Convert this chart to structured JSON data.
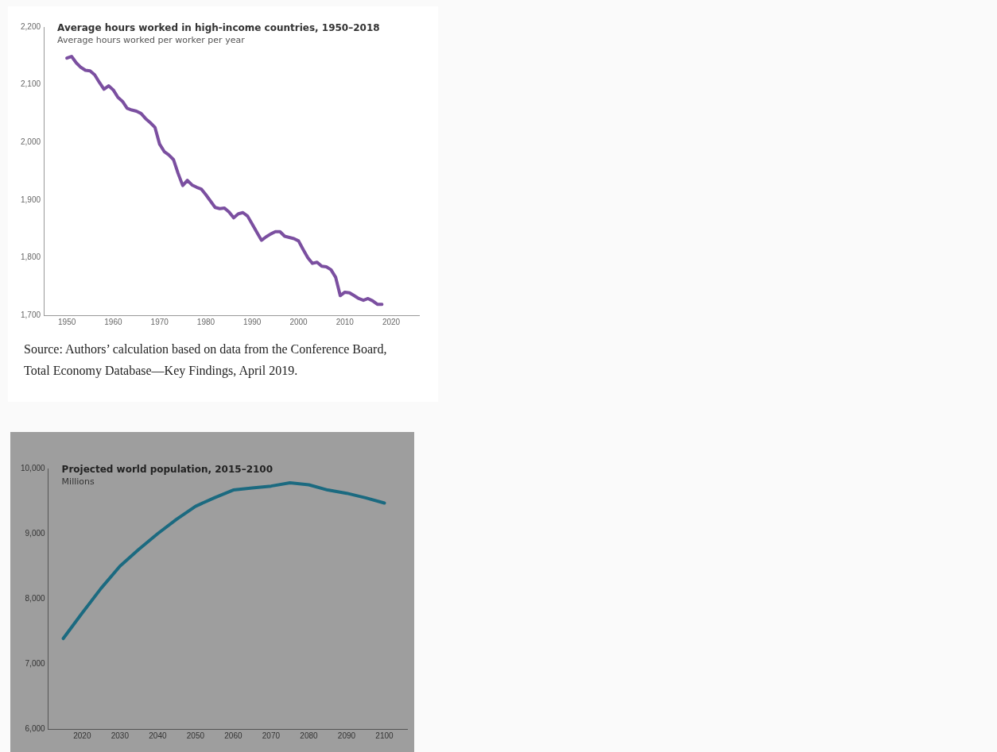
{
  "chart_data": [
    {
      "type": "line",
      "title": "Average hours worked in high-income countries, 1950–2018",
      "subtitle": "Average hours worked per worker per year",
      "marker": "none",
      "grid": false,
      "legend": false,
      "x": [
        1950,
        1951,
        1952,
        1953,
        1954,
        1955,
        1956,
        1957,
        1958,
        1959,
        1960,
        1961,
        1962,
        1963,
        1964,
        1965,
        1966,
        1967,
        1968,
        1969,
        1970,
        1971,
        1972,
        1973,
        1974,
        1975,
        1976,
        1977,
        1978,
        1979,
        1980,
        1981,
        1982,
        1983,
        1984,
        1985,
        1986,
        1987,
        1988,
        1989,
        1990,
        1991,
        1992,
        1993,
        1994,
        1995,
        1996,
        1997,
        1998,
        1999,
        2000,
        2001,
        2002,
        2003,
        2004,
        2005,
        2006,
        2007,
        2008,
        2009,
        2010,
        2011,
        2012,
        2013,
        2014,
        2015,
        2016,
        2017,
        2018
      ],
      "series": [
        {
          "color": "#7b4fa0",
          "values": [
            2146,
            2149,
            2138,
            2130,
            2125,
            2124,
            2117,
            2104,
            2092,
            2098,
            2091,
            2078,
            2071,
            2059,
            2056,
            2054,
            2050,
            2041,
            2034,
            2026,
            1997,
            1984,
            1978,
            1970,
            1946,
            1925,
            1934,
            1926,
            1922,
            1919,
            1909,
            1898,
            1887,
            1885,
            1886,
            1879,
            1869,
            1876,
            1878,
            1872,
            1858,
            1844,
            1830,
            1836,
            1841,
            1845,
            1845,
            1837,
            1835,
            1833,
            1829,
            1814,
            1800,
            1790,
            1792,
            1785,
            1784,
            1779,
            1766,
            1734,
            1740,
            1739,
            1734,
            1729,
            1726,
            1729,
            1725,
            1719,
            1719
          ]
        }
      ],
      "xlim": [
        1945,
        2026
      ],
      "xticks": [
        1950,
        1960,
        1970,
        1980,
        1990,
        2000,
        2010,
        2020
      ],
      "ylim": [
        1700,
        2200
      ],
      "yticks": [
        {
          "value": 1700,
          "label": "1,700"
        },
        {
          "value": 1800,
          "label": "1,800"
        },
        {
          "value": 1900,
          "label": "1,900"
        },
        {
          "value": 2000,
          "label": "2,000"
        },
        {
          "value": 2100,
          "label": "2,100"
        },
        {
          "value": 2200,
          "label": "2,200"
        }
      ],
      "annotations": [
        "Source: Authors’ calculation based on data from the Conference Board, Total Economy Database—Key Findings, April 2019."
      ]
    },
    {
      "type": "line",
      "title": "Projected world population, 2015–2100",
      "subtitle": "Millions",
      "marker": "none",
      "grid": false,
      "legend": false,
      "x": [
        2015,
        2020,
        2025,
        2030,
        2035,
        2040,
        2045,
        2050,
        2055,
        2060,
        2065,
        2070,
        2075,
        2080,
        2085,
        2090,
        2095,
        2100
      ],
      "series": [
        {
          "color": "#1b6a80",
          "values": [
            7390,
            7780,
            8160,
            8500,
            8760,
            9000,
            9220,
            9420,
            9550,
            9670,
            9700,
            9730,
            9780,
            9750,
            9670,
            9620,
            9550,
            9470
          ]
        }
      ],
      "xlim": [
        2011,
        2106
      ],
      "xticks": [
        2020,
        2030,
        2040,
        2050,
        2060,
        2070,
        2080,
        2090,
        2100
      ],
      "ylim": [
        6000,
        10000
      ],
      "yticks": [
        {
          "value": 6000,
          "label": "6,000"
        },
        {
          "value": 7000,
          "label": "7,000"
        },
        {
          "value": 8000,
          "label": "8,000"
        },
        {
          "value": 9000,
          "label": "9,000"
        },
        {
          "value": 10000,
          "label": "10,000"
        }
      ]
    }
  ]
}
